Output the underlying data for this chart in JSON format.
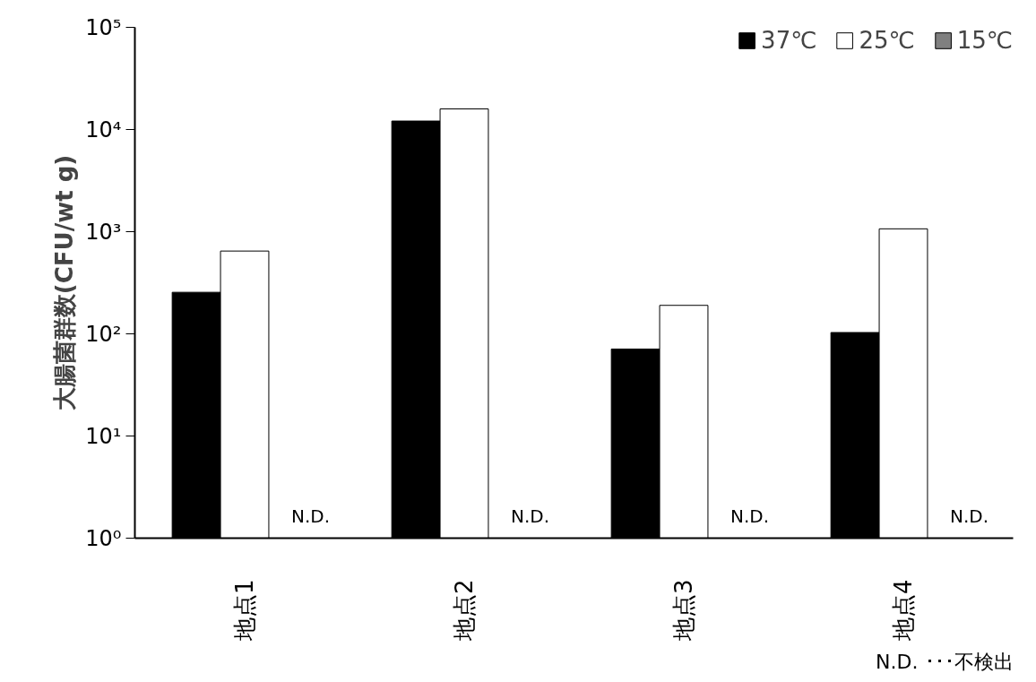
{
  "chart_data": {
    "type": "bar",
    "ylabel": "大腸菌群数(CFU/wt g)",
    "categories": [
      "地点1",
      "地点2",
      "地点3",
      "地点4"
    ],
    "series": [
      {
        "name": "37℃",
        "color": "#000000",
        "values": [
          255,
          12100,
          71,
          103
        ]
      },
      {
        "name": "25℃",
        "color": "#ffffff",
        "values": [
          646,
          15900,
          190,
          1066
        ]
      },
      {
        "name": "15℃",
        "color": "#808080",
        "values": [
          null,
          null,
          null,
          null
        ],
        "value_labels": [
          "N.D.",
          "N.D.",
          "N.D.",
          "N.D."
        ]
      }
    ],
    "log": true,
    "ylim": [
      1,
      100000
    ],
    "yticks": [
      {
        "value": 1,
        "label": "10⁰"
      },
      {
        "value": 10,
        "label": "10¹"
      },
      {
        "value": 100,
        "label": "10²"
      },
      {
        "value": 1000,
        "label": "10³"
      },
      {
        "value": 10000,
        "label": "10⁴"
      },
      {
        "value": 100000,
        "label": "10⁵"
      }
    ],
    "legend": "top right",
    "grid": false,
    "annotations": [
      "N.D. ･･･不検出"
    ]
  }
}
